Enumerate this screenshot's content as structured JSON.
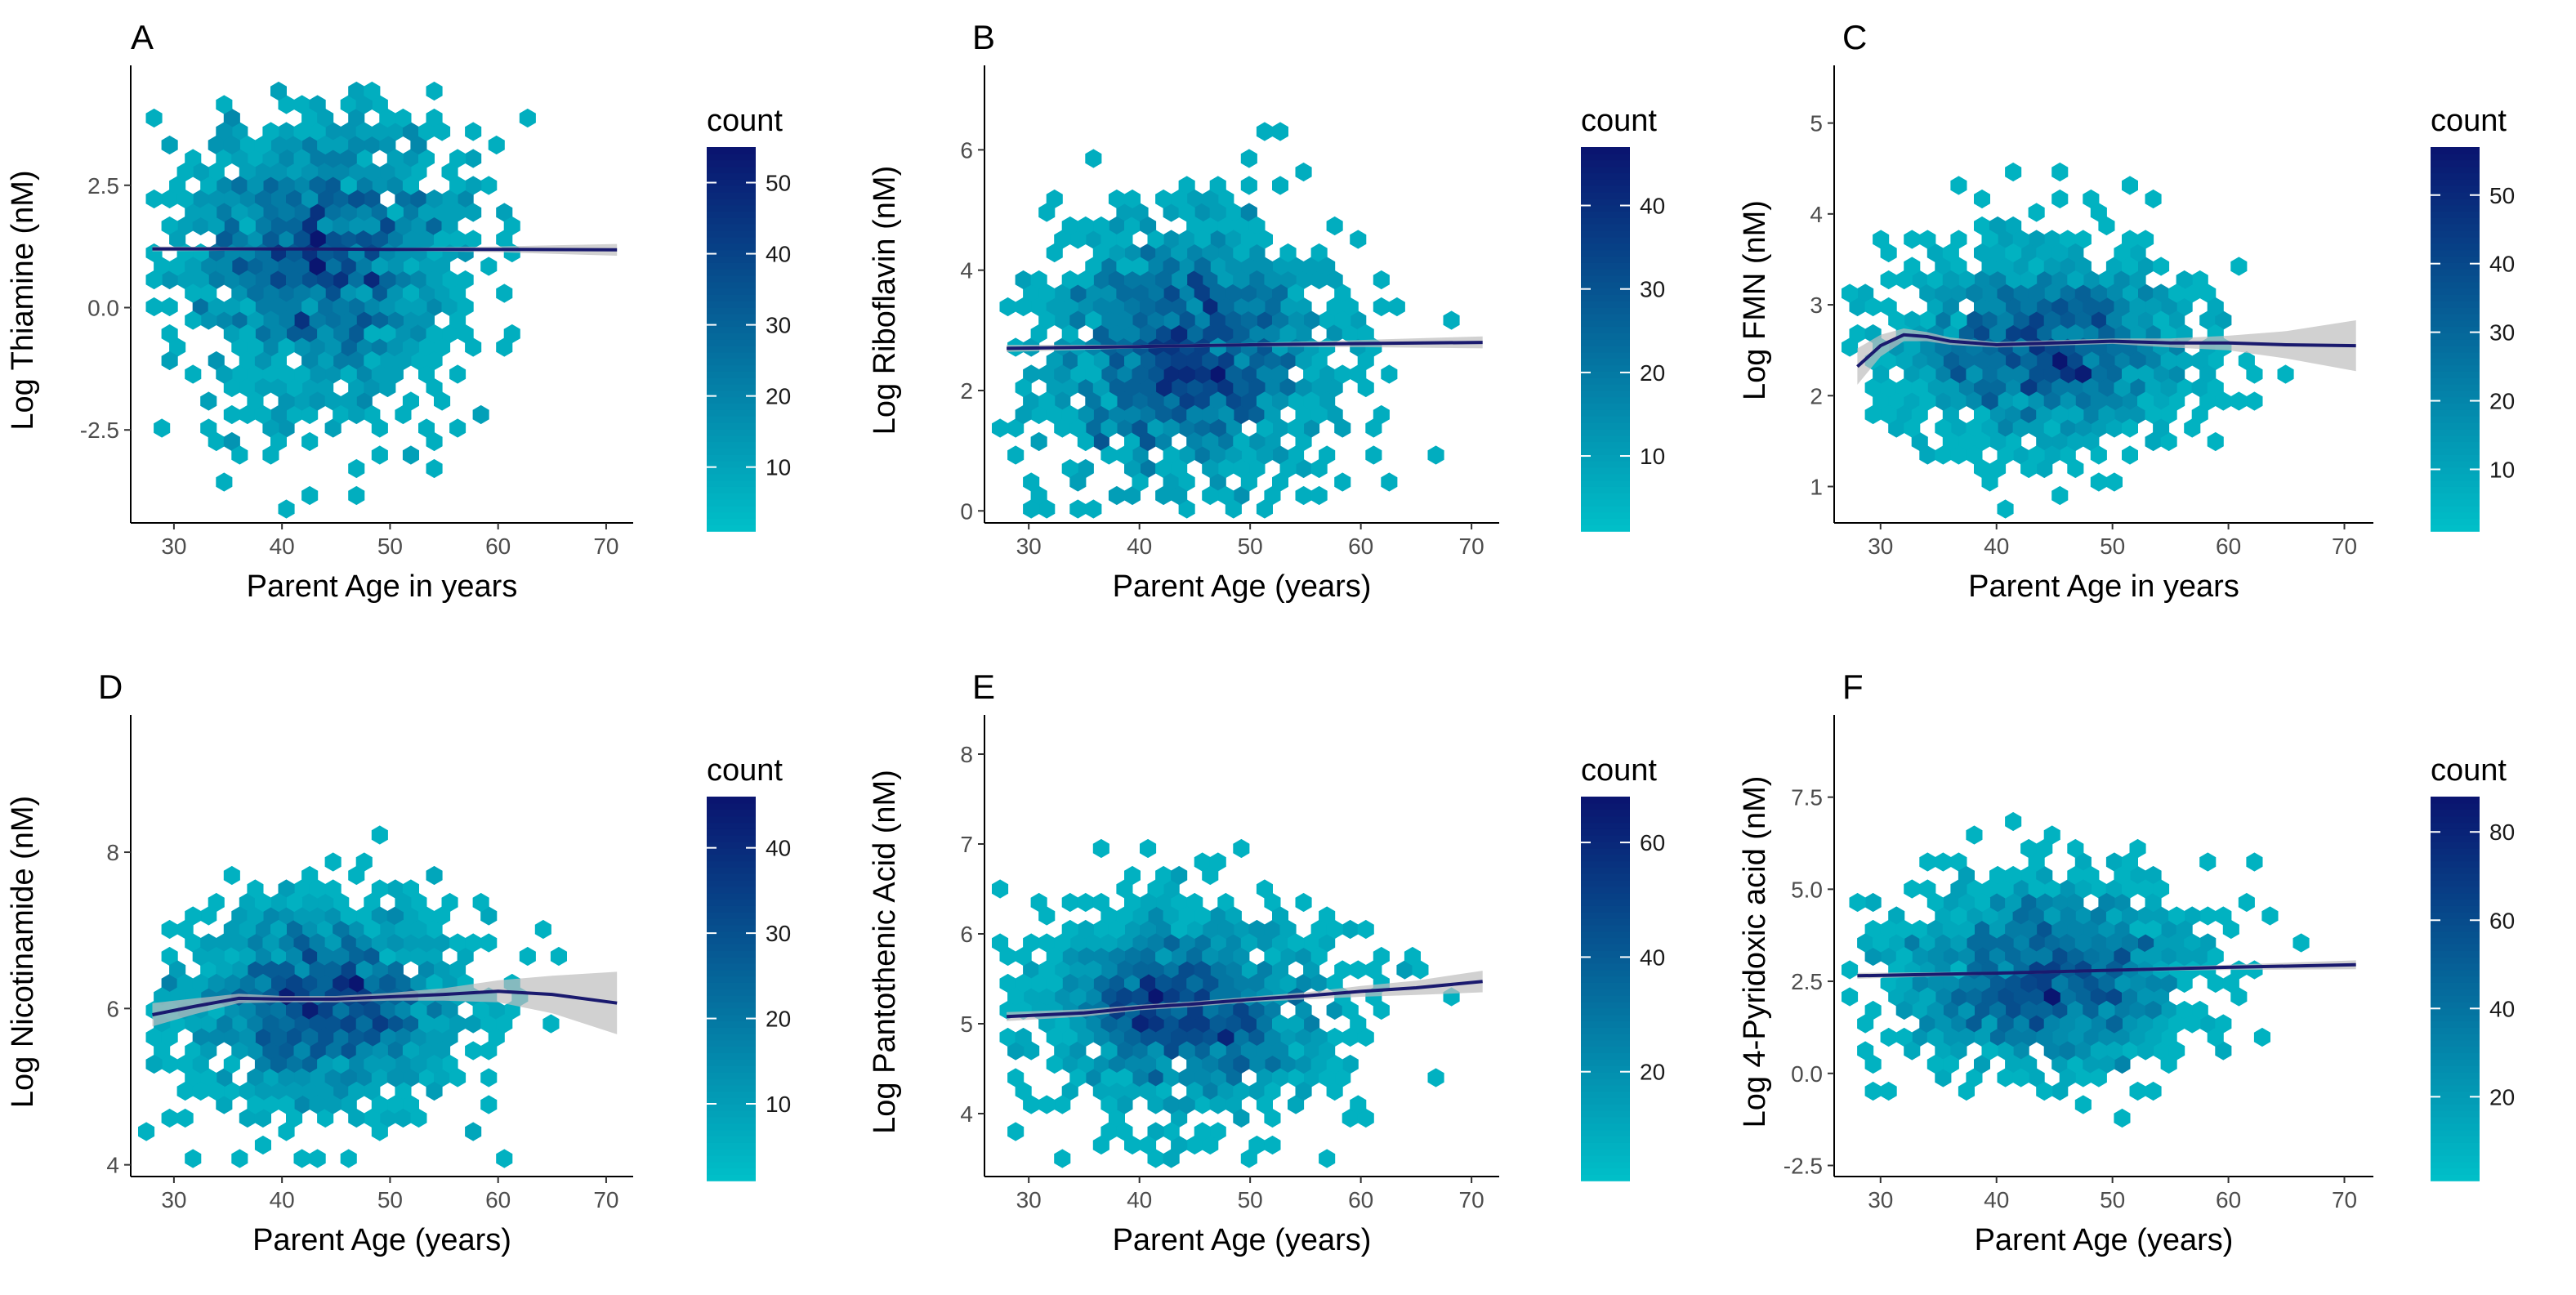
{
  "colors": {
    "low": "#00BFC8",
    "high": "#0A1570",
    "trend": "#1A1A6E",
    "band": "#BEBEBE"
  },
  "chart_data": [
    {
      "type": "hexbin",
      "panel": "A",
      "xlabel": "Parent Age in years",
      "ylabel": "Log Thiamine (nM)",
      "xlim": [
        26,
        72.5
      ],
      "ylim": [
        -4.4,
        4.7
      ],
      "xticks": [
        30,
        40,
        50,
        60,
        70
      ],
      "yticks": [
        -2.5,
        0.0,
        2.5
      ],
      "ytick_labels": [
        "-2.5",
        "0.0",
        "2.5"
      ],
      "legend": {
        "title": "count",
        "min": 1,
        "max": 55,
        "ticks": [
          10,
          20,
          30,
          40,
          50
        ],
        "tick_labels": [
          "10",
          "20",
          "30",
          "40",
          "50"
        ]
      },
      "cloud": {
        "cx": 43.5,
        "cy": 1.1,
        "sx": 6.5,
        "sy": 1.6,
        "n": 1400,
        "seed": 11
      },
      "trend": {
        "x": [
          28,
          40,
          50,
          60,
          71
        ],
        "y": [
          1.2,
          1.2,
          1.19,
          1.19,
          1.18
        ],
        "band": [
          0.05,
          0.03,
          0.03,
          0.06,
          0.12
        ]
      }
    },
    {
      "type": "hexbin",
      "panel": "B",
      "xlabel": "Parent Age (years)",
      "ylabel": "Log Riboflavin (nM)",
      "xlim": [
        26,
        72.5
      ],
      "ylim": [
        -0.2,
        7.2
      ],
      "xticks": [
        30,
        40,
        50,
        60,
        70
      ],
      "yticks": [
        0,
        2,
        4,
        6
      ],
      "ytick_labels": [
        "0",
        "2",
        "4",
        "6"
      ],
      "legend": {
        "title": "count",
        "min": 1,
        "max": 47,
        "ticks": [
          10,
          20,
          30,
          40
        ],
        "tick_labels": [
          "10",
          "20",
          "30",
          "40"
        ]
      },
      "cloud": {
        "cx": 44,
        "cy": 2.6,
        "sx": 6.5,
        "sy": 1.1,
        "n": 1400,
        "seed": 23
      },
      "trend": {
        "x": [
          28,
          40,
          50,
          60,
          71
        ],
        "y": [
          2.7,
          2.73,
          2.76,
          2.78,
          2.8
        ],
        "band": [
          0.06,
          0.03,
          0.03,
          0.06,
          0.1
        ]
      }
    },
    {
      "type": "hexbin",
      "panel": "C",
      "xlabel": "Parent Age in years",
      "ylabel": "Log FMN (nM)",
      "xlim": [
        26,
        72.5
      ],
      "ylim": [
        0.6,
        5.5
      ],
      "xticks": [
        30,
        40,
        50,
        60,
        70
      ],
      "yticks": [
        1,
        2,
        3,
        4,
        5
      ],
      "ytick_labels": [
        "1",
        "2",
        "3",
        "4",
        "5"
      ],
      "legend": {
        "title": "count",
        "min": 1,
        "max": 57,
        "ticks": [
          10,
          20,
          30,
          40,
          50
        ],
        "tick_labels": [
          "10",
          "20",
          "30",
          "40",
          "50"
        ]
      },
      "cloud": {
        "cx": 44,
        "cy": 2.55,
        "sx": 6.5,
        "sy": 0.55,
        "n": 1400,
        "seed": 37
      },
      "trend": {
        "x": [
          28,
          30,
          32,
          34,
          36,
          40,
          45,
          50,
          55,
          60,
          65,
          71
        ],
        "y": [
          2.32,
          2.55,
          2.67,
          2.65,
          2.6,
          2.56,
          2.58,
          2.6,
          2.58,
          2.58,
          2.56,
          2.55
        ],
        "band": [
          0.2,
          0.12,
          0.07,
          0.05,
          0.04,
          0.03,
          0.03,
          0.03,
          0.05,
          0.08,
          0.15,
          0.28
        ]
      }
    },
    {
      "type": "hexbin",
      "panel": "D",
      "xlabel": "Parent Age (years)",
      "ylabel": "Log Nicotinamide (nM)",
      "xlim": [
        26,
        72.5
      ],
      "ylim": [
        3.85,
        9.6
      ],
      "xticks": [
        30,
        40,
        50,
        60,
        70
      ],
      "yticks": [
        4,
        6,
        8
      ],
      "ytick_labels": [
        "4",
        "6",
        "8"
      ],
      "legend": {
        "title": "count",
        "min": 1,
        "max": 46,
        "ticks": [
          10,
          20,
          30,
          40
        ],
        "tick_labels": [
          "10",
          "20",
          "30",
          "40"
        ]
      },
      "cloud": {
        "cx": 44,
        "cy": 6.05,
        "sx": 6.5,
        "sy": 0.65,
        "n": 1400,
        "seed": 53
      },
      "trend": {
        "x": [
          28,
          32,
          36,
          40,
          45,
          50,
          55,
          60,
          65,
          71
        ],
        "y": [
          5.92,
          6.03,
          6.13,
          6.12,
          6.12,
          6.15,
          6.18,
          6.22,
          6.18,
          6.07
        ],
        "band": [
          0.15,
          0.1,
          0.06,
          0.04,
          0.04,
          0.05,
          0.08,
          0.14,
          0.24,
          0.4
        ]
      }
    },
    {
      "type": "hexbin",
      "panel": "E",
      "xlabel": "Parent Age (years)",
      "ylabel": "Log Pantothenic Acid (nM)",
      "xlim": [
        26,
        72.5
      ],
      "ylim": [
        3.3,
        8.3
      ],
      "xticks": [
        30,
        40,
        50,
        60,
        70
      ],
      "yticks": [
        4,
        5,
        6,
        7,
        8
      ],
      "ytick_labels": [
        "4",
        "5",
        "6",
        "7",
        "8"
      ],
      "legend": {
        "title": "count",
        "min": 1,
        "max": 68,
        "ticks": [
          20,
          40,
          60
        ],
        "tick_labels": [
          "20",
          "40",
          "60"
        ]
      },
      "cloud": {
        "cx": 44.5,
        "cy": 5.15,
        "sx": 6.5,
        "sy": 0.55,
        "n": 1400,
        "seed": 71
      },
      "trend": {
        "x": [
          28,
          35,
          40,
          45,
          50,
          55,
          60,
          65,
          71
        ],
        "y": [
          5.08,
          5.12,
          5.18,
          5.22,
          5.27,
          5.31,
          5.36,
          5.4,
          5.47
        ],
        "band": [
          0.05,
          0.04,
          0.03,
          0.03,
          0.03,
          0.04,
          0.06,
          0.08,
          0.12
        ]
      }
    },
    {
      "type": "hexbin",
      "panel": "F",
      "xlabel": "Parent Age (years)",
      "ylabel": "Log 4-Pyridoxic acid (nM)",
      "xlim": [
        26,
        72.5
      ],
      "ylim": [
        -2.8,
        9.4
      ],
      "xticks": [
        30,
        40,
        50,
        60,
        70
      ],
      "yticks": [
        -2.5,
        0.0,
        2.5,
        5.0,
        7.5
      ],
      "ytick_labels": [
        "-2.5",
        "0.0",
        "2.5",
        "5.0",
        "7.5"
      ],
      "legend": {
        "title": "count",
        "min": 1,
        "max": 88,
        "ticks": [
          20,
          40,
          60,
          80
        ],
        "tick_labels": [
          "20",
          "40",
          "60",
          "80"
        ]
      },
      "cloud": {
        "cx": 44.5,
        "cy": 2.6,
        "sx": 6.5,
        "sy": 1.3,
        "n": 1400,
        "seed": 97
      },
      "trend": {
        "x": [
          28,
          40,
          50,
          60,
          71
        ],
        "y": [
          2.65,
          2.72,
          2.8,
          2.88,
          2.95
        ],
        "band": [
          0.08,
          0.04,
          0.04,
          0.07,
          0.12
        ]
      }
    }
  ]
}
